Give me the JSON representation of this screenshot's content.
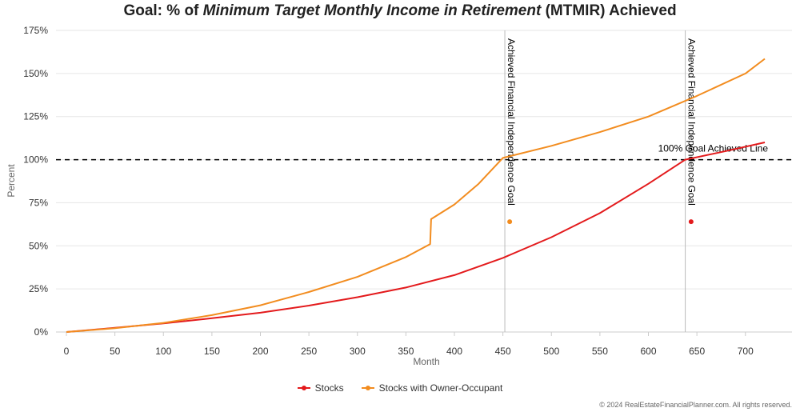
{
  "chart_data": {
    "type": "line",
    "title_parts": [
      "Goal: % of ",
      "Minimum Target Monthly Income in Retirement",
      " (MTMIR) Achieved"
    ],
    "xlabel": "Month",
    "ylabel": "Percent",
    "xlim": [
      0,
      720
    ],
    "ylim": [
      0,
      175
    ],
    "x_ticks": [
      0,
      50,
      100,
      150,
      200,
      250,
      300,
      350,
      400,
      450,
      500,
      550,
      600,
      650,
      700
    ],
    "y_ticks": [
      0,
      25,
      50,
      75,
      100,
      125,
      150,
      175
    ],
    "y_tick_labels": [
      "0%",
      "25%",
      "50%",
      "75%",
      "100%",
      "125%",
      "150%",
      "175%"
    ],
    "grid": "horizontal",
    "legend_position": "bottom",
    "series": [
      {
        "name": "Stocks",
        "color": "#e31a1c",
        "x": [
          0,
          50,
          100,
          150,
          200,
          250,
          300,
          350,
          400,
          450,
          500,
          550,
          600,
          638,
          680,
          720
        ],
        "y": [
          0,
          2.4,
          5,
          8,
          11.2,
          15.3,
          20.2,
          25.8,
          33,
          43,
          55,
          69,
          86,
          100,
          105,
          110
        ]
      },
      {
        "name": "Stocks with Owner-Occupant",
        "color": "#f28c1f",
        "x": [
          0,
          50,
          100,
          150,
          200,
          250,
          300,
          350,
          375,
          376,
          400,
          425,
          450,
          500,
          550,
          600,
          650,
          700,
          720
        ],
        "y": [
          0,
          2.2,
          5.3,
          9.8,
          15.5,
          23.2,
          32,
          43.5,
          51,
          65.5,
          74,
          86,
          101,
          108,
          116,
          125,
          137,
          150,
          158.5
        ]
      }
    ],
    "reference_line": {
      "y": 100,
      "label": "100% Goal Achieved Line"
    },
    "annotations": [
      {
        "x": 452,
        "label": "Achieved Financial Independence Goal",
        "marker_y": 64,
        "marker_x": 457,
        "color": "#f28c1f"
      },
      {
        "x": 638,
        "label": "Achieved Financial Independence Goal",
        "marker_y": 64,
        "marker_x": 644,
        "color": "#e31a1c"
      }
    ]
  },
  "copyright": "© 2024 RealEstateFinancialPlanner.com. All rights reserved."
}
